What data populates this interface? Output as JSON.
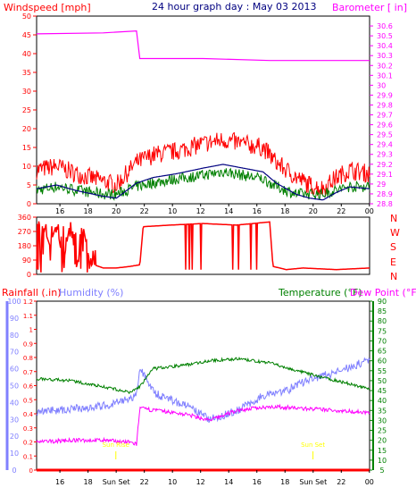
{
  "header": {
    "left_label": "Windspeed [mph]",
    "title": "24 hour graph day : May 03 2013",
    "right_label": "Barometer [ in]"
  },
  "colors": {
    "wind_gust": "#ff0000",
    "wind_avg": "#008000",
    "wind_dir": "#ff0000",
    "barometer": "#ff00ff",
    "rain": "#ff0000",
    "humidity": "#8080ff",
    "temperature": "#008000",
    "dewpoint": "#ff00ff",
    "navy_line": "#000080",
    "sun": "#ffff00"
  },
  "x_axis": {
    "ticks": [
      "16",
      "18",
      "20",
      "22",
      "10",
      "12",
      "14",
      "16",
      "18",
      "20",
      "22",
      "00"
    ],
    "bottom_ticks": [
      "16",
      "18",
      "Sun Set",
      "22",
      "10",
      "12",
      "14",
      "16",
      "18",
      "Sun Set",
      "22",
      "00"
    ]
  },
  "sun_labels": {
    "sunrise": "Sun Rise",
    "sunset": "Sun Set"
  },
  "compass": [
    "N",
    "W",
    "S",
    "E",
    "N"
  ],
  "bottom_labels": {
    "rain": "Rainfall (.in)",
    "humidity": "Humidity (%)",
    "temperature": "Temperature (°F)",
    "dewpoint": "Dew Point (°F)"
  },
  "chart_data": [
    {
      "type": "line",
      "name": "wind_barometer",
      "ylabel": "Windspeed [mph]",
      "ylim": [
        0,
        50
      ],
      "yticks": [
        0,
        5,
        10,
        15,
        20,
        25,
        30,
        35,
        40,
        45,
        50
      ],
      "y2label": "Barometer [ in]",
      "y2lim": [
        28.8,
        30.7
      ],
      "y2ticks": [
        28.8,
        28.9,
        29,
        29.1,
        29.2,
        29.3,
        29.4,
        29.5,
        29.6,
        29.7,
        29.8,
        29.9,
        30,
        30.1,
        30.2,
        30.3,
        30.4,
        30.5,
        30.6
      ],
      "series": [
        {
          "key": "gust",
          "x": [
            0,
            0.06,
            0.12,
            0.2,
            0.24,
            0.3,
            0.35,
            0.42,
            0.5,
            0.56,
            0.62,
            0.68,
            0.72,
            0.78,
            0.82,
            0.86,
            0.9,
            0.94,
            1
          ],
          "y": [
            8,
            9,
            7,
            5,
            4,
            10,
            12,
            13,
            15,
            16,
            15,
            14,
            10,
            6,
            4,
            3,
            6,
            8,
            7
          ]
        },
        {
          "key": "avg",
          "x": [
            0,
            0.06,
            0.12,
            0.2,
            0.24,
            0.3,
            0.35,
            0.42,
            0.5,
            0.56,
            0.62,
            0.68,
            0.72,
            0.78,
            0.82,
            0.86,
            0.9,
            0.94,
            1
          ],
          "y": [
            3,
            4,
            3,
            2,
            2,
            4,
            5,
            6,
            7,
            8,
            7,
            6,
            4,
            2,
            2,
            2,
            3,
            4,
            4
          ]
        },
        {
          "key": "barometer",
          "x": [
            0,
            0.2,
            0.3,
            0.31,
            0.5,
            0.7,
            0.9,
            1
          ],
          "y": [
            30.52,
            30.53,
            30.55,
            30.27,
            30.27,
            30.25,
            30.25,
            30.25
          ]
        }
      ]
    },
    {
      "type": "line",
      "name": "wind_direction",
      "ylim": [
        0,
        360
      ],
      "yticks": [
        0,
        90,
        180,
        270,
        360
      ],
      "x": [
        0,
        0.02,
        0.04,
        0.06,
        0.08,
        0.1,
        0.12,
        0.14,
        0.16,
        0.2,
        0.24,
        0.28,
        0.31,
        0.32,
        0.4,
        0.5,
        0.6,
        0.7,
        0.71,
        0.75,
        0.8,
        0.9,
        1
      ],
      "y": [
        320,
        300,
        180,
        320,
        60,
        320,
        40,
        300,
        70,
        40,
        40,
        50,
        60,
        300,
        310,
        320,
        310,
        330,
        50,
        30,
        40,
        30,
        40
      ]
    },
    {
      "type": "line",
      "name": "rain_humidity_temperature",
      "y_rain_lim": [
        0,
        1.2
      ],
      "y_rain_ticks": [
        0,
        0.1,
        0.2,
        0.3,
        0.4,
        0.5,
        0.6,
        0.7,
        0.8,
        0.9,
        1,
        1.1,
        1.2
      ],
      "y_hum_lim": [
        0,
        100
      ],
      "y_hum_ticks": [
        0,
        10,
        20,
        30,
        40,
        50,
        60,
        70,
        80,
        90,
        100
      ],
      "y_temp_lim": [
        5,
        90
      ],
      "y_temp_ticks": [
        5,
        10,
        15,
        20,
        25,
        30,
        35,
        40,
        45,
        50,
        55,
        60,
        65,
        70,
        75,
        80,
        85,
        90
      ],
      "series": [
        {
          "key": "rain",
          "x": [
            0,
            1
          ],
          "y": [
            0,
            0
          ]
        },
        {
          "key": "humidity",
          "x": [
            0,
            0.1,
            0.2,
            0.28,
            0.3,
            0.31,
            0.36,
            0.45,
            0.52,
            0.6,
            0.7,
            0.75,
            0.8,
            0.9,
            1
          ],
          "y": [
            35,
            36,
            38,
            42,
            44,
            60,
            45,
            38,
            30,
            35,
            46,
            47,
            52,
            58,
            65
          ]
        },
        {
          "key": "temperature",
          "x": [
            0,
            0.1,
            0.2,
            0.28,
            0.31,
            0.35,
            0.45,
            0.52,
            0.6,
            0.65,
            0.7,
            0.78,
            0.85,
            0.9,
            1
          ],
          "y": [
            51,
            50,
            47,
            44,
            47,
            56,
            58,
            60,
            61,
            60,
            59,
            55,
            52,
            50,
            46
          ]
        },
        {
          "key": "dewpoint",
          "x": [
            0,
            0.1,
            0.2,
            0.28,
            0.3,
            0.31,
            0.36,
            0.45,
            0.52,
            0.6,
            0.7,
            0.8,
            0.9,
            1
          ],
          "y": [
            19,
            20,
            20,
            19,
            18,
            36,
            35,
            33,
            30,
            35,
            37,
            36,
            35,
            34
          ]
        }
      ]
    }
  ]
}
